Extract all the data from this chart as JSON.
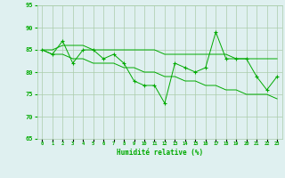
{
  "x": [
    0,
    1,
    2,
    3,
    4,
    5,
    6,
    7,
    8,
    9,
    10,
    11,
    12,
    13,
    14,
    15,
    16,
    17,
    18,
    19,
    20,
    21,
    22,
    23
  ],
  "y_main": [
    85,
    84,
    87,
    82,
    85,
    85,
    83,
    84,
    82,
    78,
    77,
    77,
    73,
    82,
    81,
    80,
    81,
    89,
    83,
    83,
    83,
    79,
    76,
    79
  ],
  "y_upper": [
    85,
    85,
    86,
    86,
    86,
    85,
    85,
    85,
    85,
    85,
    85,
    85,
    84,
    84,
    84,
    84,
    84,
    84,
    84,
    83,
    83,
    83,
    83,
    83
  ],
  "y_lower": [
    85,
    84,
    84,
    83,
    83,
    82,
    82,
    82,
    81,
    81,
    80,
    80,
    79,
    79,
    78,
    78,
    77,
    77,
    76,
    76,
    75,
    75,
    75,
    74
  ],
  "line_color": "#00aa00",
  "bg_color": "#dff0f0",
  "grid_color": "#aaccaa",
  "xlabel": "Humidité relative (%)",
  "xlim": [
    -0.5,
    23.5
  ],
  "ylim": [
    65,
    95
  ],
  "yticks": [
    65,
    70,
    75,
    80,
    85,
    90,
    95
  ],
  "xtick_labels": [
    "0",
    "1",
    "2",
    "3",
    "4",
    "5",
    "6",
    "7",
    "8",
    "9",
    "10",
    "11",
    "12",
    "13",
    "14",
    "15",
    "16",
    "17",
    "18",
    "19",
    "20",
    "21",
    "22",
    "23"
  ]
}
